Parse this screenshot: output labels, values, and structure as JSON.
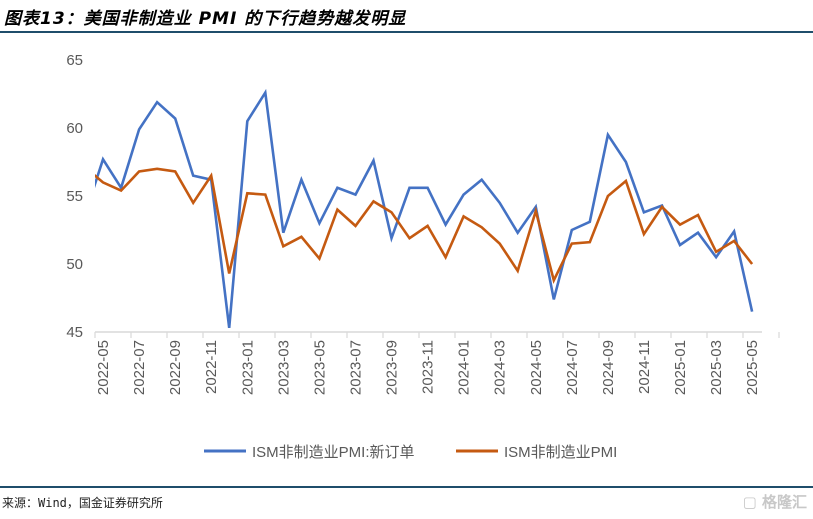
{
  "title": "图表13：美国非制造业 PMI 的下行趋势越发明显",
  "source": "来源：Wind，国金证券研究所",
  "watermark": "格隆汇",
  "colors": {
    "new_orders": "#4472c4",
    "pmi": "#c55a11",
    "rule": "#1f4e6b"
  },
  "chart_data": {
    "type": "line",
    "title": "图表13：美国非制造业 PMI 的下行趋势越发明显",
    "xlabel": "",
    "ylabel": "",
    "ylim": [
      45,
      65
    ],
    "yticks": [
      45,
      50,
      55,
      60,
      65
    ],
    "grid": false,
    "legend": "bottom",
    "x": [
      "2022-04",
      "2022-05",
      "2022-06",
      "2022-07",
      "2022-08",
      "2022-09",
      "2022-10",
      "2022-11",
      "2022-12",
      "2023-01",
      "2023-02",
      "2023-03",
      "2023-04",
      "2023-05",
      "2023-06",
      "2023-07",
      "2023-08",
      "2023-09",
      "2023-10",
      "2023-11",
      "2023-12",
      "2024-01",
      "2024-02",
      "2024-03",
      "2024-04",
      "2024-05",
      "2024-06",
      "2024-07",
      "2024-08",
      "2024-09",
      "2024-10",
      "2024-11",
      "2024-12",
      "2025-01",
      "2025-02",
      "2025-03",
      "2025-04",
      "2025-05"
    ],
    "xtick_labels": [
      "2022-05",
      "2022-07",
      "2022-09",
      "2022-11",
      "2023-01",
      "2023-03",
      "2023-05",
      "2023-07",
      "2023-09",
      "2023-11",
      "2024-01",
      "2024-03",
      "2024-05",
      "2024-07",
      "2024-09",
      "2024-11",
      "2025-01",
      "2025-03",
      "2025-05"
    ],
    "series": [
      {
        "name": "ISM非制造业PMI:新订单",
        "color": "#4472c4",
        "values": [
          53.6,
          57.7,
          55.6,
          59.9,
          61.9,
          60.7,
          56.5,
          56.2,
          45.3,
          60.5,
          62.6,
          52.3,
          56.2,
          53.0,
          55.6,
          55.1,
          57.6,
          51.9,
          55.6,
          55.6,
          52.9,
          55.1,
          56.2,
          54.5,
          52.3,
          54.2,
          47.4,
          52.5,
          53.1,
          59.5,
          57.5,
          53.8,
          54.3,
          51.4,
          52.3,
          50.5,
          52.4,
          46.5
        ]
      },
      {
        "name": "ISM非制造业PMI",
        "color": "#c55a11",
        "values": [
          57.1,
          56.0,
          55.4,
          56.8,
          57.0,
          56.8,
          54.5,
          56.5,
          49.3,
          55.2,
          55.1,
          51.3,
          52.0,
          50.4,
          54.0,
          52.8,
          54.6,
          53.8,
          51.9,
          52.8,
          50.5,
          53.5,
          52.7,
          51.5,
          49.5,
          53.9,
          48.8,
          51.5,
          51.6,
          55.0,
          56.1,
          52.2,
          54.2,
          52.9,
          53.6,
          50.9,
          51.7,
          50.0
        ]
      }
    ]
  }
}
